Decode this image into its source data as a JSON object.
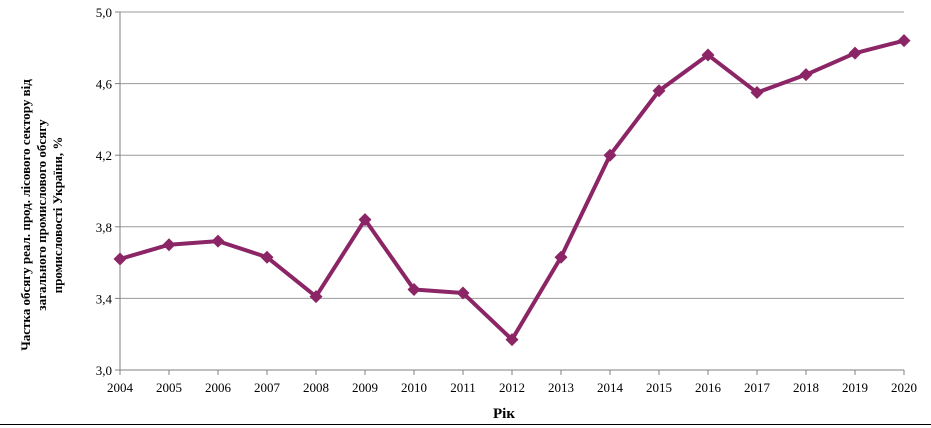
{
  "chart_data": {
    "type": "line",
    "x": [
      "2004",
      "2005",
      "2006",
      "2007",
      "2008",
      "2009",
      "2010",
      "2011",
      "2012",
      "2013",
      "2014",
      "2015",
      "2016",
      "2017",
      "2018",
      "2019",
      "2020"
    ],
    "series": [
      {
        "values": [
          3.62,
          3.7,
          3.72,
          3.63,
          3.41,
          3.84,
          3.45,
          3.43,
          3.17,
          3.63,
          4.2,
          4.56,
          4.76,
          4.55,
          4.65,
          4.77,
          4.84
        ]
      }
    ],
    "yticks": [
      "3,0",
      "3,4",
      "3,8",
      "4,2",
      "4,6",
      "5,0"
    ],
    "ylim": [
      3.0,
      5.0
    ],
    "xlabel": "Рік",
    "ylabel_lines": [
      "Частка обсягу реал. прод. лісового сектору від",
      "загального промислового обсягу",
      "промисловості України, %"
    ],
    "grid": true,
    "colors": {
      "series": "#8b2566",
      "grid": "#9a9a9a",
      "axis": "#808080"
    }
  }
}
